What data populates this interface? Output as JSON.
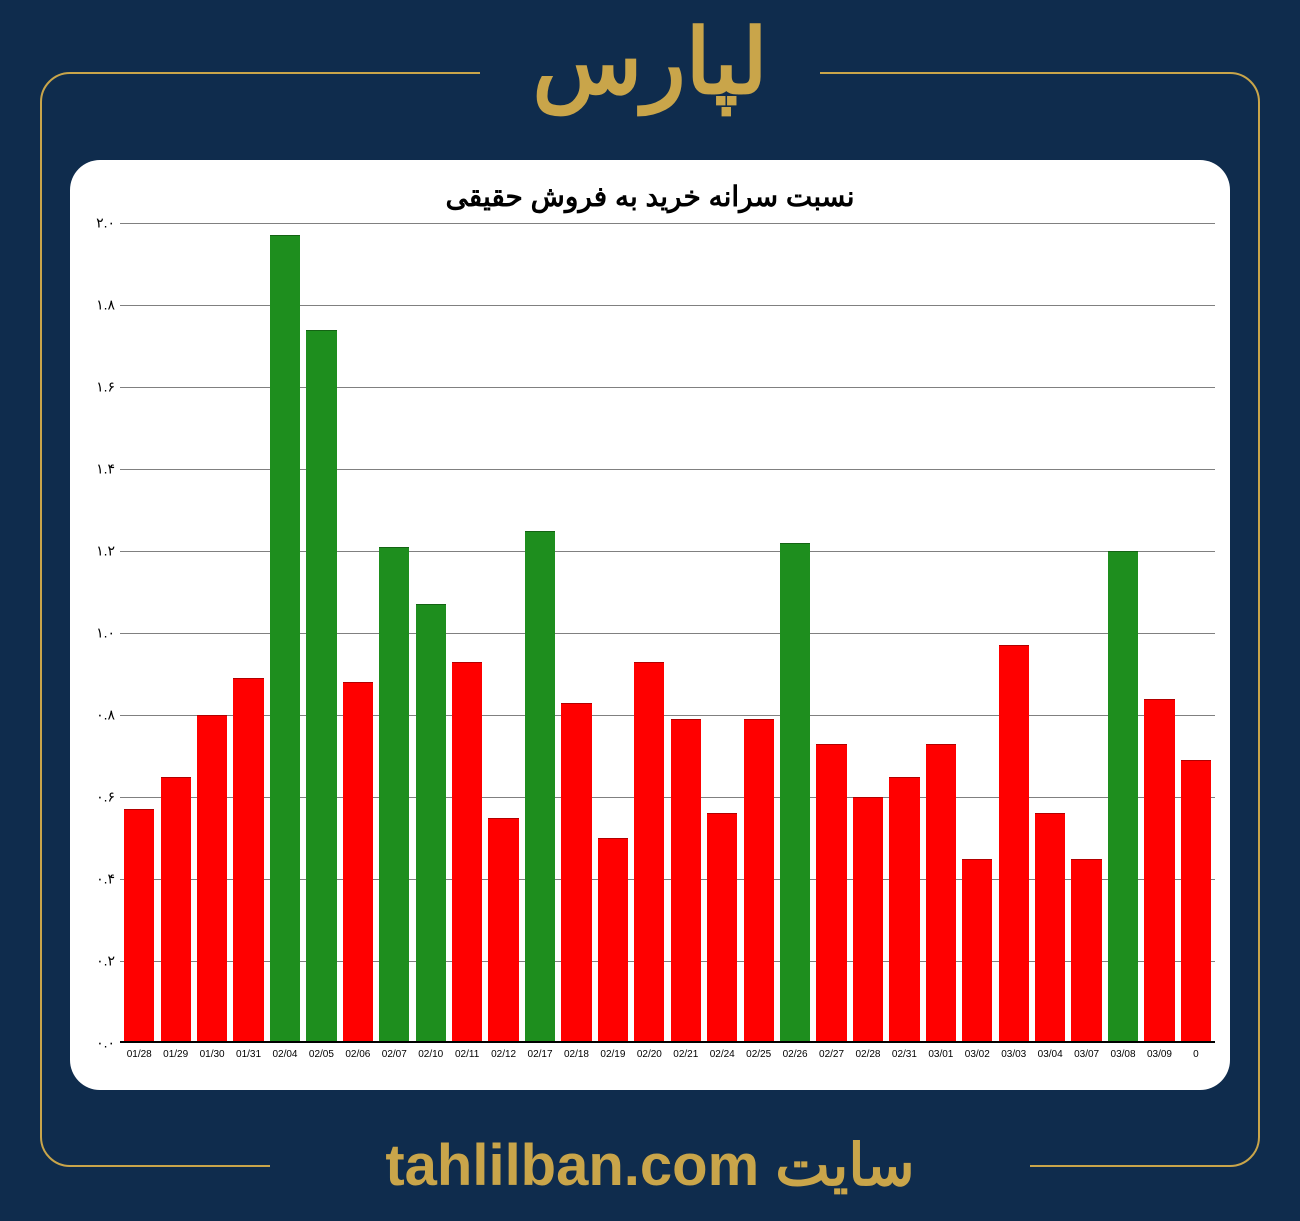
{
  "header": {
    "title": "لپارس",
    "color": "#c9a54a"
  },
  "footer": {
    "label": "سایت",
    "site": "tahlilban.com",
    "color": "#c9a54a"
  },
  "background_color": "#0f2c4d",
  "border_color": "#c9a54a",
  "chart": {
    "type": "bar",
    "title": "نسبت سرانه خرید به فروش حقیقی",
    "title_fontsize": 28,
    "title_color": "#000000",
    "background_color": "#ffffff",
    "grid_color": "#808080",
    "ylim_min": 0.0,
    "ylim_max": 2.0,
    "ytick_step": 0.2,
    "yticks": [
      "۰.۰",
      "۰.۲",
      "۰.۴",
      "۰.۶",
      "۰.۸",
      "۱.۰",
      "۱.۲",
      "۱.۴",
      "۱.۶",
      "۱.۸",
      "۲.۰"
    ],
    "ytick_values": [
      0.0,
      0.2,
      0.4,
      0.6,
      0.8,
      1.0,
      1.2,
      1.4,
      1.6,
      1.8,
      2.0
    ],
    "color_green": "#1e8e1e",
    "color_red": "#ff0000",
    "bar_width": 0.88,
    "categories": [
      "01/28",
      "01/29",
      "01/30",
      "01/31",
      "02/04",
      "02/05",
      "02/06",
      "02/07",
      "02/10",
      "02/11",
      "02/12",
      "02/17",
      "02/18",
      "02/19",
      "02/20",
      "02/21",
      "02/24",
      "02/25",
      "02/26",
      "02/27",
      "02/28",
      "02/31",
      "03/01",
      "03/02",
      "03/03",
      "03/04",
      "03/07",
      "03/08",
      "03/09",
      "0"
    ],
    "values": [
      0.57,
      0.65,
      0.8,
      0.89,
      1.97,
      1.74,
      0.88,
      1.21,
      1.07,
      0.93,
      0.55,
      1.25,
      0.83,
      0.5,
      0.93,
      0.79,
      0.56,
      0.79,
      1.22,
      0.73,
      0.6,
      0.65,
      0.73,
      0.45,
      0.97,
      0.56,
      0.45,
      1.2,
      0.84,
      0.69
    ],
    "colors": [
      "#ff0000",
      "#ff0000",
      "#ff0000",
      "#ff0000",
      "#1e8e1e",
      "#1e8e1e",
      "#ff0000",
      "#1e8e1e",
      "#1e8e1e",
      "#ff0000",
      "#ff0000",
      "#1e8e1e",
      "#ff0000",
      "#ff0000",
      "#ff0000",
      "#ff0000",
      "#ff0000",
      "#ff0000",
      "#1e8e1e",
      "#ff0000",
      "#ff0000",
      "#ff0000",
      "#ff0000",
      "#ff0000",
      "#ff0000",
      "#ff0000",
      "#ff0000",
      "#1e8e1e",
      "#ff0000",
      "#ff0000"
    ]
  }
}
